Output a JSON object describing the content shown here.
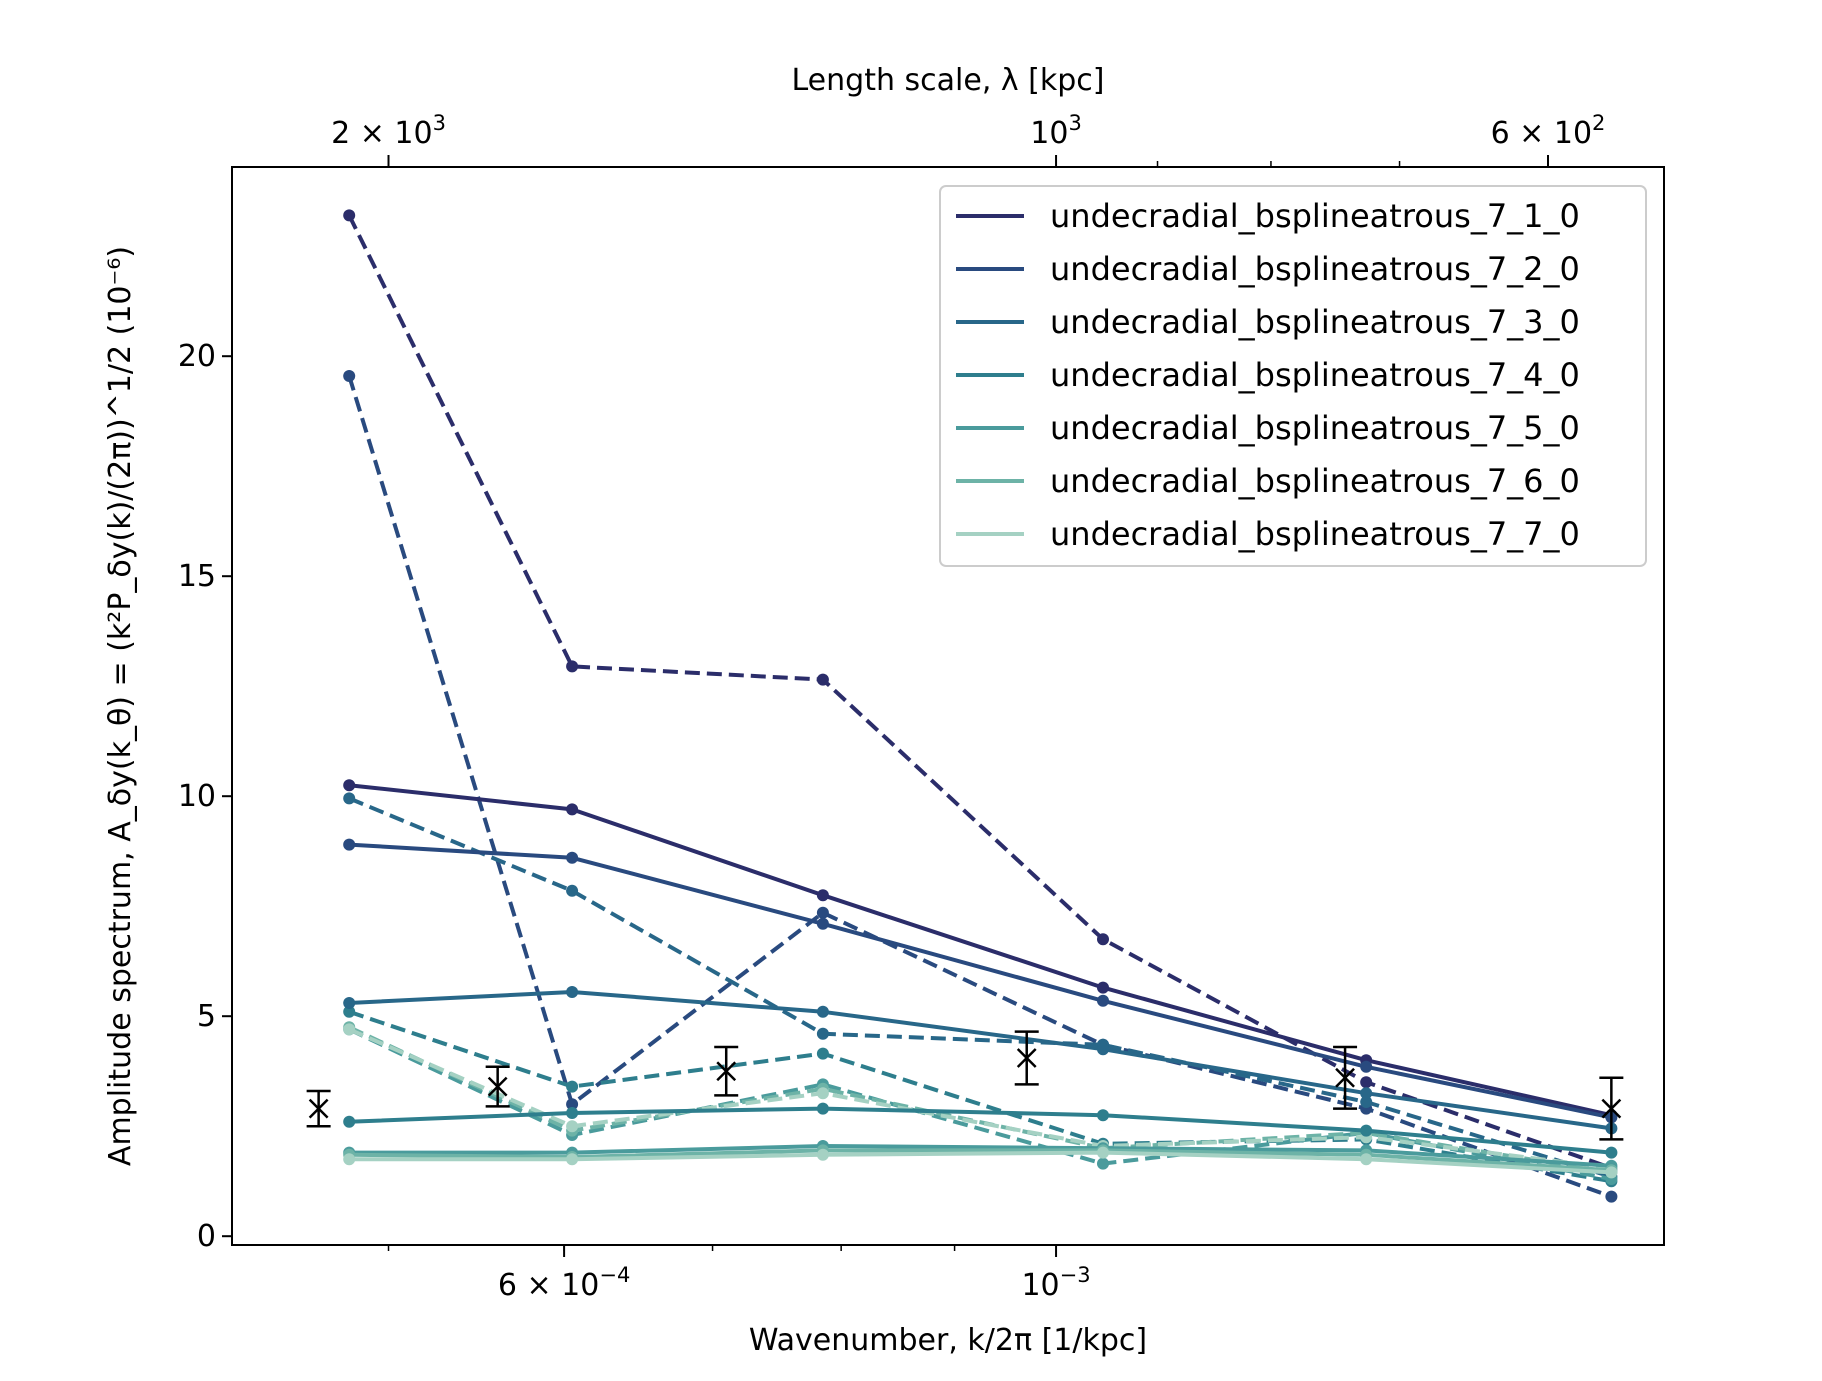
{
  "chart_data": {
    "type": "line",
    "xscale": "log",
    "xlabel": "Wavenumber, k/2π [1/kpc]",
    "ylabel": "Amplitude spectrum, A_δy(k_θ) = (k²P_δy(k)/(2π))^1/2 (10⁻⁶)",
    "top_xlabel": "Length scale, λ [kpc]",
    "xlim": [
      0.000425,
      0.00188
    ],
    "ylim": [
      -0.2,
      24.3
    ],
    "x_ticks": [
      {
        "value": 0.0006,
        "mantissa": "6 × 10",
        "exp": "−4"
      },
      {
        "value": 0.001,
        "mantissa": "10",
        "exp": "−3"
      }
    ],
    "y_ticks": [
      0,
      5,
      10,
      15,
      20
    ],
    "top_ticks": [
      {
        "value": 2000,
        "mantissa": "2 × 10",
        "exp": "3"
      },
      {
        "value": 1000,
        "mantissa": "10",
        "exp": "3"
      },
      {
        "value": 600,
        "mantissa": "6 × 10",
        "exp": "2"
      }
    ],
    "x": [
      0.00048,
      0.000605,
      0.000785,
      0.00105,
      0.00138,
      0.00178
    ],
    "series": [
      {
        "name": "undecradial_bsplineatrous_7_1_0",
        "color": "#2b2d6a",
        "solid": [
          10.25,
          9.7,
          7.75,
          5.65,
          4.0,
          2.75
        ],
        "dashed": [
          23.2,
          12.95,
          12.65,
          6.75,
          3.5,
          1.55
        ]
      },
      {
        "name": "undecradial_bsplineatrous_7_2_0",
        "color": "#294a7f",
        "solid": [
          8.9,
          8.6,
          7.1,
          5.35,
          3.85,
          2.7
        ],
        "dashed": [
          19.55,
          3.0,
          7.35,
          4.35,
          2.9,
          0.9
        ]
      },
      {
        "name": "undecradial_bsplineatrous_7_3_0",
        "color": "#286789",
        "solid": [
          5.3,
          5.55,
          5.1,
          4.25,
          3.25,
          2.45
        ],
        "dashed": [
          9.95,
          7.85,
          4.6,
          4.35,
          3.05,
          1.35
        ]
      },
      {
        "name": "undecradial_bsplineatrous_7_4_0",
        "color": "#2e7e8d",
        "solid": [
          2.6,
          2.8,
          2.9,
          2.75,
          2.4,
          1.9
        ],
        "dashed": [
          5.1,
          3.4,
          4.15,
          2.1,
          2.2,
          1.25
        ]
      },
      {
        "name": "undecradial_bsplineatrous_7_5_0",
        "color": "#4a9b9c",
        "solid": [
          1.9,
          1.9,
          2.05,
          2.0,
          1.95,
          1.6
        ],
        "dashed": [
          4.7,
          2.3,
          3.45,
          1.65,
          2.35,
          1.3
        ]
      },
      {
        "name": "undecradial_bsplineatrous_7_6_0",
        "color": "#6db3a7",
        "solid": [
          1.85,
          1.8,
          1.95,
          1.95,
          1.85,
          1.5
        ],
        "dashed": [
          4.75,
          2.4,
          3.35,
          2.0,
          2.35,
          1.45
        ]
      },
      {
        "name": "undecradial_bsplineatrous_7_7_0",
        "color": "#a5d1c3",
        "solid": [
          1.75,
          1.75,
          1.85,
          1.9,
          1.75,
          1.45
        ],
        "dashed": [
          4.7,
          2.5,
          3.25,
          2.05,
          2.25,
          1.55
        ]
      }
    ],
    "errorbars": [
      {
        "x": 0.000465,
        "y": 2.9,
        "yerr": 0.4
      },
      {
        "x": 0.00056,
        "y": 3.4,
        "yerr": 0.45
      },
      {
        "x": 0.00071,
        "y": 3.75,
        "yerr": 0.55
      },
      {
        "x": 0.00097,
        "y": 4.05,
        "yerr": 0.6
      },
      {
        "x": 0.00135,
        "y": 3.6,
        "yerr": 0.7
      },
      {
        "x": 0.00178,
        "y": 2.9,
        "yerr": 0.7
      }
    ],
    "legend_position": "upper right",
    "grid": false
  }
}
